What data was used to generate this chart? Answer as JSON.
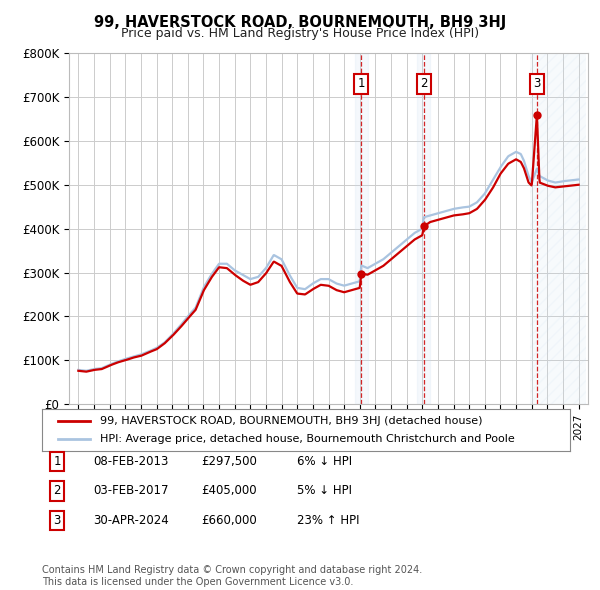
{
  "title": "99, HAVERSTOCK ROAD, BOURNEMOUTH, BH9 3HJ",
  "subtitle": "Price paid vs. HM Land Registry's House Price Index (HPI)",
  "ylim": [
    0,
    800000
  ],
  "yticks": [
    0,
    100000,
    200000,
    300000,
    400000,
    500000,
    600000,
    700000,
    800000
  ],
  "ytick_labels": [
    "£0",
    "£100K",
    "£200K",
    "£300K",
    "£400K",
    "£500K",
    "£600K",
    "£700K",
    "£800K"
  ],
  "background_color": "#ffffff",
  "grid_color": "#cccccc",
  "hpi_color": "#aac4e0",
  "price_color": "#cc0000",
  "sale_years": [
    2013.1,
    2017.09,
    2024.33
  ],
  "sale_prices": [
    297500,
    405000,
    660000
  ],
  "sale_labels": [
    "1",
    "2",
    "3"
  ],
  "sale_info": [
    {
      "label": "1",
      "date": "08-FEB-2013",
      "price": "£297,500",
      "hpi": "6% ↓ HPI"
    },
    {
      "label": "2",
      "date": "03-FEB-2017",
      "price": "£405,000",
      "hpi": "5% ↓ HPI"
    },
    {
      "label": "3",
      "date": "30-APR-2024",
      "price": "£660,000",
      "hpi": "23% ↑ HPI"
    }
  ],
  "legend_line1": "99, HAVERSTOCK ROAD, BOURNEMOUTH, BH9 3HJ (detached house)",
  "legend_line2": "HPI: Average price, detached house, Bournemouth Christchurch and Poole",
  "footnote": "Contains HM Land Registry data © Crown copyright and database right 2024.\nThis data is licensed under the Open Government Licence v3.0.",
  "hpi_points": [
    [
      1995.0,
      78000
    ],
    [
      1995.5,
      76000
    ],
    [
      1996.0,
      80000
    ],
    [
      1996.5,
      82000
    ],
    [
      1997.0,
      90000
    ],
    [
      1997.5,
      97000
    ],
    [
      1998.0,
      103000
    ],
    [
      1998.5,
      108000
    ],
    [
      1999.0,
      113000
    ],
    [
      1999.5,
      120000
    ],
    [
      2000.0,
      128000
    ],
    [
      2000.5,
      140000
    ],
    [
      2001.0,
      158000
    ],
    [
      2001.5,
      178000
    ],
    [
      2002.0,
      200000
    ],
    [
      2002.5,
      220000
    ],
    [
      2003.0,
      265000
    ],
    [
      2003.5,
      295000
    ],
    [
      2004.0,
      320000
    ],
    [
      2004.5,
      320000
    ],
    [
      2005.0,
      305000
    ],
    [
      2005.5,
      295000
    ],
    [
      2006.0,
      285000
    ],
    [
      2006.5,
      290000
    ],
    [
      2007.0,
      310000
    ],
    [
      2007.5,
      340000
    ],
    [
      2008.0,
      330000
    ],
    [
      2008.5,
      295000
    ],
    [
      2009.0,
      265000
    ],
    [
      2009.5,
      262000
    ],
    [
      2010.0,
      275000
    ],
    [
      2010.5,
      285000
    ],
    [
      2011.0,
      285000
    ],
    [
      2011.5,
      275000
    ],
    [
      2012.0,
      270000
    ],
    [
      2012.5,
      275000
    ],
    [
      2013.0,
      280000
    ],
    [
      2013.1,
      316000
    ],
    [
      2013.5,
      310000
    ],
    [
      2014.0,
      320000
    ],
    [
      2014.5,
      330000
    ],
    [
      2015.0,
      345000
    ],
    [
      2015.5,
      360000
    ],
    [
      2016.0,
      375000
    ],
    [
      2016.5,
      390000
    ],
    [
      2017.0,
      400000
    ],
    [
      2017.1,
      426000
    ],
    [
      2017.5,
      430000
    ],
    [
      2018.0,
      435000
    ],
    [
      2018.5,
      440000
    ],
    [
      2019.0,
      445000
    ],
    [
      2019.5,
      448000
    ],
    [
      2020.0,
      450000
    ],
    [
      2020.5,
      460000
    ],
    [
      2021.0,
      480000
    ],
    [
      2021.5,
      510000
    ],
    [
      2022.0,
      540000
    ],
    [
      2022.5,
      565000
    ],
    [
      2023.0,
      575000
    ],
    [
      2023.3,
      570000
    ],
    [
      2023.5,
      555000
    ],
    [
      2023.8,
      520000
    ],
    [
      2024.0,
      505000
    ],
    [
      2024.33,
      537000
    ],
    [
      2024.5,
      520000
    ],
    [
      2025.0,
      510000
    ],
    [
      2025.5,
      505000
    ],
    [
      2026.0,
      508000
    ],
    [
      2026.5,
      510000
    ],
    [
      2027.0,
      512000
    ]
  ],
  "price_points": [
    [
      1995.0,
      76000
    ],
    [
      1995.5,
      74000
    ],
    [
      1996.0,
      78000
    ],
    [
      1996.5,
      80000
    ],
    [
      1997.0,
      88000
    ],
    [
      1997.5,
      95000
    ],
    [
      1998.0,
      100000
    ],
    [
      1998.5,
      106000
    ],
    [
      1999.0,
      110000
    ],
    [
      1999.5,
      118000
    ],
    [
      2000.0,
      125000
    ],
    [
      2000.5,
      138000
    ],
    [
      2001.0,
      155000
    ],
    [
      2001.5,
      174000
    ],
    [
      2002.0,
      195000
    ],
    [
      2002.5,
      215000
    ],
    [
      2003.0,
      258000
    ],
    [
      2003.5,
      288000
    ],
    [
      2004.0,
      312000
    ],
    [
      2004.5,
      310000
    ],
    [
      2005.0,
      295000
    ],
    [
      2005.5,
      282000
    ],
    [
      2006.0,
      272000
    ],
    [
      2006.5,
      278000
    ],
    [
      2007.0,
      298000
    ],
    [
      2007.5,
      325000
    ],
    [
      2008.0,
      315000
    ],
    [
      2008.5,
      280000
    ],
    [
      2009.0,
      252000
    ],
    [
      2009.5,
      250000
    ],
    [
      2010.0,
      262000
    ],
    [
      2010.5,
      272000
    ],
    [
      2011.0,
      270000
    ],
    [
      2011.5,
      260000
    ],
    [
      2012.0,
      255000
    ],
    [
      2012.5,
      260000
    ],
    [
      2013.0,
      265000
    ],
    [
      2013.1,
      297500
    ],
    [
      2013.5,
      295000
    ],
    [
      2014.0,
      305000
    ],
    [
      2014.5,
      315000
    ],
    [
      2015.0,
      330000
    ],
    [
      2015.5,
      345000
    ],
    [
      2016.0,
      360000
    ],
    [
      2016.5,
      375000
    ],
    [
      2017.0,
      385000
    ],
    [
      2017.1,
      405000
    ],
    [
      2017.5,
      415000
    ],
    [
      2018.0,
      420000
    ],
    [
      2018.5,
      425000
    ],
    [
      2019.0,
      430000
    ],
    [
      2019.5,
      432000
    ],
    [
      2020.0,
      435000
    ],
    [
      2020.5,
      445000
    ],
    [
      2021.0,
      465000
    ],
    [
      2021.5,
      492000
    ],
    [
      2022.0,
      525000
    ],
    [
      2022.5,
      548000
    ],
    [
      2023.0,
      558000
    ],
    [
      2023.3,
      552000
    ],
    [
      2023.5,
      538000
    ],
    [
      2023.8,
      505000
    ],
    [
      2024.0,
      498000
    ],
    [
      2024.33,
      660000
    ],
    [
      2024.5,
      505000
    ],
    [
      2025.0,
      498000
    ],
    [
      2025.5,
      494000
    ],
    [
      2026.0,
      496000
    ],
    [
      2026.5,
      498000
    ],
    [
      2027.0,
      500000
    ]
  ]
}
